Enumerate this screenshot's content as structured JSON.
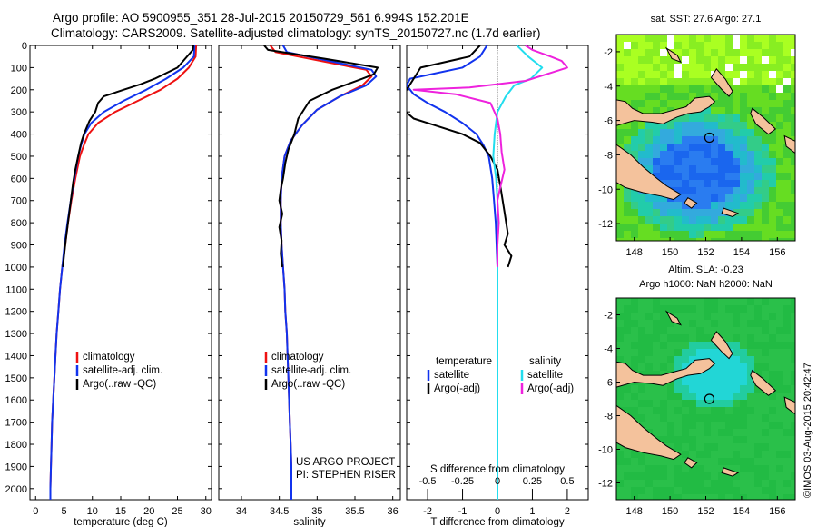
{
  "header": {
    "title_line1": "Argo profile: AO 5900955_351 28-Jul-2015 20150729_561 6.994S 152.201E",
    "title_line2": "Climatology: CARS2009. Satellite-adjusted climatology: synTS_20150727.nc (1.7d earlier)"
  },
  "colors": {
    "climatology": "#ee1111",
    "satellite": "#1133ee",
    "argo": "#000000",
    "salinity_satellite": "#22ddee",
    "salinity_argo": "#ee22dd",
    "land": "#f4c29c",
    "ocean_deep": "#1a66ee",
    "ocean_mid": "#22ccaa",
    "ocean_green": "#44cc33",
    "ocean_yellow": "#aaff22",
    "sla_green": "#22bb44",
    "sla_cyan": "#22d6d6"
  },
  "chart_data": [
    {
      "type": "line",
      "id": "temperature",
      "xlabel": "temperature (deg C)",
      "ylabel": "",
      "xlim": [
        -1,
        31
      ],
      "ylim": [
        2050,
        0
      ],
      "xticks": [
        "0",
        "5",
        "10",
        "15",
        "20",
        "25",
        "30"
      ],
      "yticks": [
        "0",
        "100",
        "200",
        "300",
        "400",
        "500",
        "600",
        "700",
        "800",
        "900",
        "1000",
        "1100",
        "1200",
        "1300",
        "1400",
        "1500",
        "1600",
        "1700",
        "1800",
        "1900",
        "2000"
      ],
      "legend": [
        "climatology",
        "satellite-adj. clim.",
        "Argo(..raw -QC)"
      ],
      "series": [
        {
          "name": "climatology",
          "color_key": "climatology",
          "points": [
            [
              28.3,
              0
            ],
            [
              28.2,
              50
            ],
            [
              27,
              100
            ],
            [
              25,
              150
            ],
            [
              22,
              200
            ],
            [
              18,
              250
            ],
            [
              14,
              300
            ],
            [
              11,
              350
            ],
            [
              9.3,
              400
            ],
            [
              8.5,
              450
            ],
            [
              7.8,
              500
            ],
            [
              7,
              600
            ],
            [
              6.3,
              700
            ],
            [
              5.7,
              800
            ],
            [
              5.2,
              900
            ],
            [
              4.7,
              1000
            ],
            [
              4.3,
              1100
            ],
            [
              4,
              1200
            ],
            [
              3.7,
              1300
            ],
            [
              3.5,
              1400
            ],
            [
              3.3,
              1500
            ],
            [
              3.1,
              1600
            ],
            [
              2.9,
              1700
            ],
            [
              2.8,
              1800
            ],
            [
              2.7,
              1900
            ],
            [
              2.6,
              2000
            ],
            [
              2.6,
              2050
            ]
          ]
        },
        {
          "name": "satellite-adj. clim.",
          "color_key": "satellite",
          "points": [
            [
              28,
              0
            ],
            [
              27.9,
              50
            ],
            [
              26,
              100
            ],
            [
              23,
              150
            ],
            [
              19.5,
              200
            ],
            [
              15.5,
              250
            ],
            [
              12,
              300
            ],
            [
              9.8,
              350
            ],
            [
              8.6,
              400
            ],
            [
              8,
              450
            ],
            [
              7.5,
              500
            ],
            [
              6.8,
              600
            ],
            [
              6.2,
              700
            ],
            [
              5.6,
              800
            ],
            [
              5.1,
              900
            ],
            [
              4.7,
              1000
            ],
            [
              4.3,
              1100
            ],
            [
              4,
              1200
            ],
            [
              3.7,
              1300
            ],
            [
              3.5,
              1400
            ],
            [
              3.3,
              1500
            ],
            [
              3.1,
              1600
            ],
            [
              2.9,
              1700
            ],
            [
              2.8,
              1800
            ],
            [
              2.7,
              1900
            ],
            [
              2.6,
              2000
            ],
            [
              2.6,
              2050
            ]
          ]
        },
        {
          "name": "Argo(..raw -QC)",
          "color_key": "argo",
          "points": [
            [
              27.8,
              0
            ],
            [
              27.7,
              20
            ],
            [
              26,
              70
            ],
            [
              25,
              100
            ],
            [
              21,
              150
            ],
            [
              18.5,
              175
            ],
            [
              15.5,
              200
            ],
            [
              12,
              230
            ],
            [
              11,
              260
            ],
            [
              10.5,
              300
            ],
            [
              9.5,
              340
            ],
            [
              8.5,
              400
            ],
            [
              8,
              440
            ],
            [
              7.5,
              500
            ],
            [
              7,
              560
            ],
            [
              6.6,
              620
            ],
            [
              6.2,
              700
            ],
            [
              5.8,
              780
            ],
            [
              5.3,
              880
            ],
            [
              5,
              950
            ],
            [
              4.8,
              1000
            ]
          ]
        }
      ]
    },
    {
      "type": "line",
      "id": "salinity",
      "xlabel": "salinity",
      "ylabel": "",
      "xlim": [
        33.7,
        36.1
      ],
      "ylim": [
        2050,
        0
      ],
      "xticks": [
        "34",
        "34.5",
        "35",
        "35.5",
        "36"
      ],
      "legend": [
        "climatology",
        "satellite-adj. clim.",
        "Argo(..raw -QC)"
      ],
      "annotation": [
        "US ARGO PROJECT",
        "PI: STEPHEN RISER"
      ],
      "series": [
        {
          "name": "climatology",
          "color_key": "climatology",
          "points": [
            [
              34.38,
              0
            ],
            [
              34.45,
              30
            ],
            [
              35.2,
              80
            ],
            [
              35.65,
              110
            ],
            [
              35.72,
              140
            ],
            [
              35.6,
              180
            ],
            [
              35.3,
              230
            ],
            [
              35,
              290
            ],
            [
              34.8,
              360
            ],
            [
              34.65,
              430
            ],
            [
              34.57,
              500
            ],
            [
              34.53,
              600
            ],
            [
              34.52,
              700
            ],
            [
              34.52,
              800
            ],
            [
              34.53,
              900
            ],
            [
              34.55,
              1000
            ],
            [
              34.57,
              1100
            ],
            [
              34.58,
              1200
            ],
            [
              34.6,
              1300
            ],
            [
              34.61,
              1400
            ],
            [
              34.62,
              1500
            ],
            [
              34.63,
              1600
            ],
            [
              34.64,
              1700
            ],
            [
              34.65,
              1800
            ],
            [
              34.66,
              1900
            ],
            [
              34.66,
              2000
            ],
            [
              34.66,
              2050
            ]
          ]
        },
        {
          "name": "satellite-adj. clim.",
          "color_key": "satellite",
          "points": [
            [
              34.55,
              0
            ],
            [
              34.6,
              30
            ],
            [
              35.3,
              80
            ],
            [
              35.72,
              110
            ],
            [
              35.78,
              140
            ],
            [
              35.65,
              180
            ],
            [
              35.3,
              230
            ],
            [
              35,
              290
            ],
            [
              34.8,
              360
            ],
            [
              34.65,
              430
            ],
            [
              34.57,
              500
            ],
            [
              34.53,
              600
            ],
            [
              34.52,
              700
            ],
            [
              34.52,
              800
            ],
            [
              34.53,
              900
            ],
            [
              34.55,
              1000
            ],
            [
              34.57,
              1100
            ],
            [
              34.58,
              1200
            ],
            [
              34.6,
              1300
            ],
            [
              34.61,
              1400
            ],
            [
              34.62,
              1500
            ],
            [
              34.63,
              1600
            ],
            [
              34.64,
              1700
            ],
            [
              34.65,
              1800
            ],
            [
              34.66,
              1900
            ],
            [
              34.66,
              2000
            ],
            [
              34.66,
              2050
            ]
          ]
        },
        {
          "name": "Argo(..raw -QC)",
          "color_key": "argo",
          "points": [
            [
              34.3,
              0
            ],
            [
              34.35,
              20
            ],
            [
              35.1,
              60
            ],
            [
              35.8,
              100
            ],
            [
              35.75,
              130
            ],
            [
              35.6,
              150
            ],
            [
              35.2,
              200
            ],
            [
              34.9,
              250
            ],
            [
              34.75,
              330
            ],
            [
              34.7,
              400
            ],
            [
              34.62,
              470
            ],
            [
              34.58,
              530
            ],
            [
              34.55,
              600
            ],
            [
              34.52,
              650
            ],
            [
              34.5,
              700
            ],
            [
              34.54,
              760
            ],
            [
              34.5,
              820
            ],
            [
              34.53,
              880
            ],
            [
              34.52,
              940
            ],
            [
              34.54,
              1000
            ]
          ]
        }
      ]
    },
    {
      "type": "line",
      "id": "difference",
      "xlabel": "T difference from climatology",
      "top_label": "S difference from climatology",
      "ylabel": "",
      "xlim": [
        -2.6,
        2.6
      ],
      "ylim": [
        2050,
        0
      ],
      "xticks": [
        "-2",
        "-1",
        "0",
        "1",
        "2"
      ],
      "top_ticks": [
        "-0.5",
        "-0.25",
        "0",
        "0.25",
        "0.5"
      ],
      "legend_headers": [
        "temperature",
        "salinity"
      ],
      "legend": [
        "satellite",
        "Argo(-adj)",
        "satellite",
        "Argo(-adj)"
      ],
      "series": [
        {
          "name": "temperature satellite",
          "color_key": "satellite",
          "points": [
            [
              -0.3,
              0
            ],
            [
              -0.5,
              50
            ],
            [
              -1,
              100
            ],
            [
              -2.5,
              150
            ],
            [
              -2.6,
              180
            ],
            [
              -2.4,
              220
            ],
            [
              -2,
              260
            ],
            [
              -1.5,
              300
            ],
            [
              -1,
              350
            ],
            [
              -0.6,
              400
            ],
            [
              -0.4,
              450
            ],
            [
              -0.25,
              500
            ],
            [
              -0.15,
              600
            ],
            [
              -0.1,
              700
            ],
            [
              -0.05,
              800
            ],
            [
              0,
              1000
            ],
            [
              0,
              2050
            ]
          ]
        },
        {
          "name": "temperature Argo(-adj)",
          "color_key": "argo",
          "points": [
            [
              -0.5,
              0
            ],
            [
              -0.8,
              50
            ],
            [
              -2.2,
              100
            ],
            [
              -2.4,
              150
            ],
            [
              -2.6,
              200
            ],
            [
              -2.7,
              240
            ],
            [
              -2.7,
              290
            ],
            [
              -2.4,
              330
            ],
            [
              -1.8,
              360
            ],
            [
              -1,
              400
            ],
            [
              -0.5,
              440
            ],
            [
              -0.2,
              500
            ],
            [
              0,
              560
            ],
            [
              0.1,
              650
            ],
            [
              0.2,
              750
            ],
            [
              0.3,
              850
            ],
            [
              0.2,
              900
            ],
            [
              0.4,
              950
            ],
            [
              0.3,
              1000
            ]
          ]
        },
        {
          "name": "salinity satellite",
          "color_key": "salinity_satellite",
          "points": [
            [
              0.14,
              0
            ],
            [
              0.22,
              50
            ],
            [
              0.32,
              100
            ],
            [
              0.24,
              150
            ],
            [
              0.12,
              180
            ],
            [
              0.06,
              230
            ],
            [
              0,
              300
            ],
            [
              -0.02,
              400
            ],
            [
              -0.03,
              500
            ],
            [
              -0.01,
              600
            ],
            [
              0,
              700
            ],
            [
              0,
              1000
            ],
            [
              0,
              2050
            ]
          ]
        },
        {
          "name": "salinity Argo(-adj)",
          "color_key": "salinity_argo",
          "points": [
            [
              0.2,
              0
            ],
            [
              0.25,
              20
            ],
            [
              0.38,
              50
            ],
            [
              0.46,
              70
            ],
            [
              0.5,
              100
            ],
            [
              0.4,
              120
            ],
            [
              0.2,
              160
            ],
            [
              -0.2,
              190
            ],
            [
              -0.6,
              200
            ],
            [
              -0.3,
              220
            ],
            [
              -0.05,
              260
            ],
            [
              0,
              330
            ],
            [
              0.02,
              400
            ],
            [
              0.03,
              480
            ],
            [
              0.05,
              560
            ],
            [
              0.02,
              640
            ],
            [
              0,
              700
            ],
            [
              0.01,
              800
            ],
            [
              0,
              900
            ],
            [
              0,
              1000
            ]
          ]
        }
      ]
    },
    {
      "type": "heatmap",
      "id": "sst-map",
      "title": "sat. SST: 27.6  Argo: 27.1",
      "xlim": [
        147,
        157
      ],
      "ylim": [
        -13,
        -1
      ],
      "xticks": [
        "148",
        "150",
        "152",
        "154",
        "156"
      ],
      "yticks": [
        "-2",
        "-4",
        "-6",
        "-8",
        "-10",
        "-12"
      ],
      "marker": [
        152.2,
        -7
      ]
    },
    {
      "type": "heatmap",
      "id": "sla-map",
      "title": [
        "Altim. SLA: -0.23",
        "Argo h1000: NaN h2000: NaN"
      ],
      "xlim": [
        147,
        157
      ],
      "ylim": [
        -13,
        -1
      ],
      "xticks": [
        "148",
        "150",
        "152",
        "154",
        "156"
      ],
      "yticks": [
        "-2",
        "-4",
        "-6",
        "-8",
        "-10",
        "-12"
      ],
      "marker": [
        152.2,
        -7
      ]
    }
  ],
  "footer": {
    "vertical_text": "©IMOS 03-Aug-2015 20:42:47"
  }
}
